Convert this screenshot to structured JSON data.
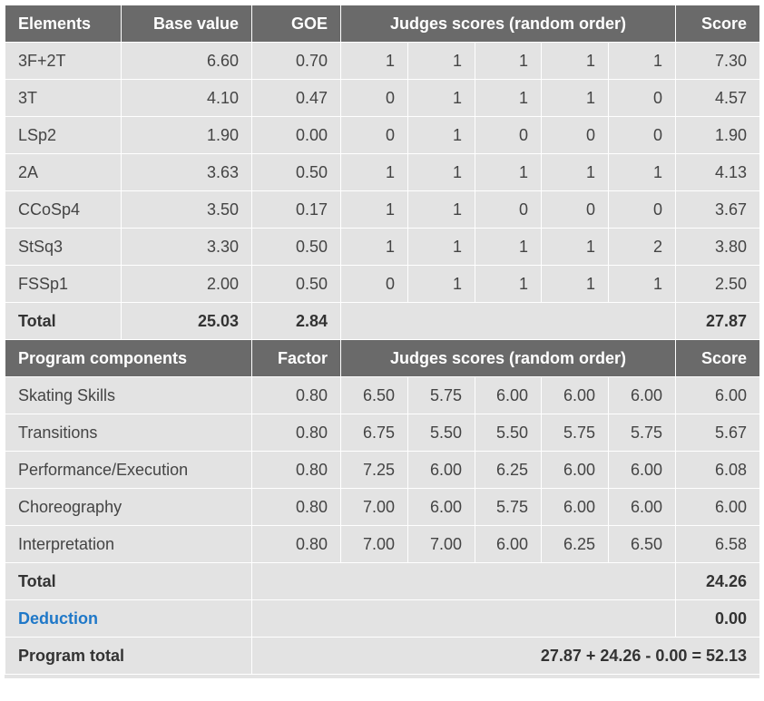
{
  "elements_header": {
    "elements": "Elements",
    "base_value": "Base value",
    "goe": "GOE",
    "judges": "Judges scores (random order)",
    "score": "Score"
  },
  "elements": [
    {
      "name": "3F+2T",
      "base": "6.60",
      "goe": "0.70",
      "judges": [
        "1",
        "1",
        "1",
        "1",
        "1"
      ],
      "score": "7.30"
    },
    {
      "name": "3T",
      "base": "4.10",
      "goe": "0.47",
      "judges": [
        "0",
        "1",
        "1",
        "1",
        "0"
      ],
      "score": "4.57"
    },
    {
      "name": "LSp2",
      "base": "1.90",
      "goe": "0.00",
      "judges": [
        "0",
        "1",
        "0",
        "0",
        "0"
      ],
      "score": "1.90"
    },
    {
      "name": "2A",
      "base": "3.63",
      "goe": "0.50",
      "judges": [
        "1",
        "1",
        "1",
        "1",
        "1"
      ],
      "score": "4.13"
    },
    {
      "name": "CCoSp4",
      "base": "3.50",
      "goe": "0.17",
      "judges": [
        "1",
        "1",
        "0",
        "0",
        "0"
      ],
      "score": "3.67"
    },
    {
      "name": "StSq3",
      "base": "3.30",
      "goe": "0.50",
      "judges": [
        "1",
        "1",
        "1",
        "1",
        "2"
      ],
      "score": "3.80"
    },
    {
      "name": "FSSp1",
      "base": "2.00",
      "goe": "0.50",
      "judges": [
        "0",
        "1",
        "1",
        "1",
        "1"
      ],
      "score": "2.50"
    }
  ],
  "elements_total": {
    "label": "Total",
    "base": "25.03",
    "goe": "2.84",
    "score": "27.87"
  },
  "pc_header": {
    "components": "Program components",
    "factor": "Factor",
    "judges": "Judges scores (random order)",
    "score": "Score"
  },
  "components": [
    {
      "name": "Skating Skills",
      "factor": "0.80",
      "judges": [
        "6.50",
        "5.75",
        "6.00",
        "6.00",
        "6.00"
      ],
      "score": "6.00"
    },
    {
      "name": "Transitions",
      "factor": "0.80",
      "judges": [
        "6.75",
        "5.50",
        "5.50",
        "5.75",
        "5.75"
      ],
      "score": "5.67"
    },
    {
      "name": "Performance/Execution",
      "factor": "0.80",
      "judges": [
        "7.25",
        "6.00",
        "6.25",
        "6.00",
        "6.00"
      ],
      "score": "6.08"
    },
    {
      "name": "Choreography",
      "factor": "0.80",
      "judges": [
        "7.00",
        "6.00",
        "5.75",
        "6.00",
        "6.00"
      ],
      "score": "6.00"
    },
    {
      "name": "Interpretation",
      "factor": "0.80",
      "judges": [
        "7.00",
        "7.00",
        "6.00",
        "6.25",
        "6.50"
      ],
      "score": "6.58"
    }
  ],
  "pc_total": {
    "label": "Total",
    "score": "24.26"
  },
  "deduction": {
    "label": "Deduction",
    "score": "0.00"
  },
  "program_total": {
    "label": "Program total",
    "formula": "27.87 + 24.26 - 0.00 = 52.13"
  }
}
